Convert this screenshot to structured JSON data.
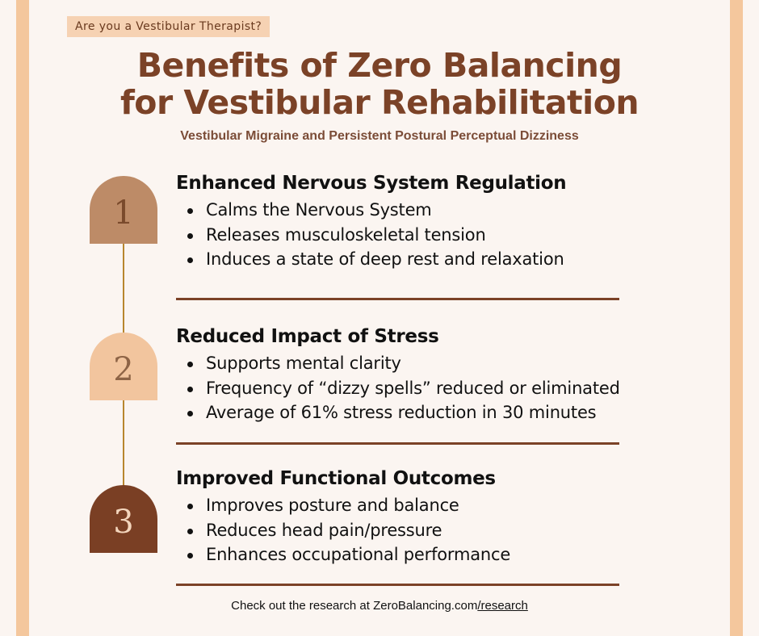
{
  "tagline": "Are you a Vestibular Therapist?",
  "title_line1": "Benefits of Zero Balancing",
  "title_line2": "for Vestibular Rehabilitation",
  "subtitle": "Vestibular Migraine and Persistent Postural Perceptual Dizziness",
  "colors": {
    "background": "#fbf5f1",
    "border": "#f4c79d",
    "title": "#7b4227",
    "badge_1": "#bd8b67",
    "badge_2": "#f2c59e",
    "badge_3": "#7a3f24",
    "timeline": "#b8862e"
  },
  "sections": [
    {
      "number": "1",
      "heading": "Enhanced Nervous System Regulation",
      "bullets": [
        "Calms the Nervous System",
        "Releases musculoskeletal tension",
        "Induces a state of deep rest and relaxation"
      ]
    },
    {
      "number": "2",
      "heading": "Reduced Impact of Stress",
      "bullets": [
        "Supports mental clarity",
        "Frequency of “dizzy spells” reduced or eliminated",
        "Average of 61% stress reduction in 30 minutes"
      ]
    },
    {
      "number": "3",
      "heading": "Improved Functional Outcomes",
      "bullets": [
        "Improves posture and balance",
        "Reduces head pain/pressure",
        "Enhances occupational performance"
      ]
    }
  ],
  "footer": {
    "text": "Check out the research at ZeroBalancing.com",
    "link": "/research"
  }
}
